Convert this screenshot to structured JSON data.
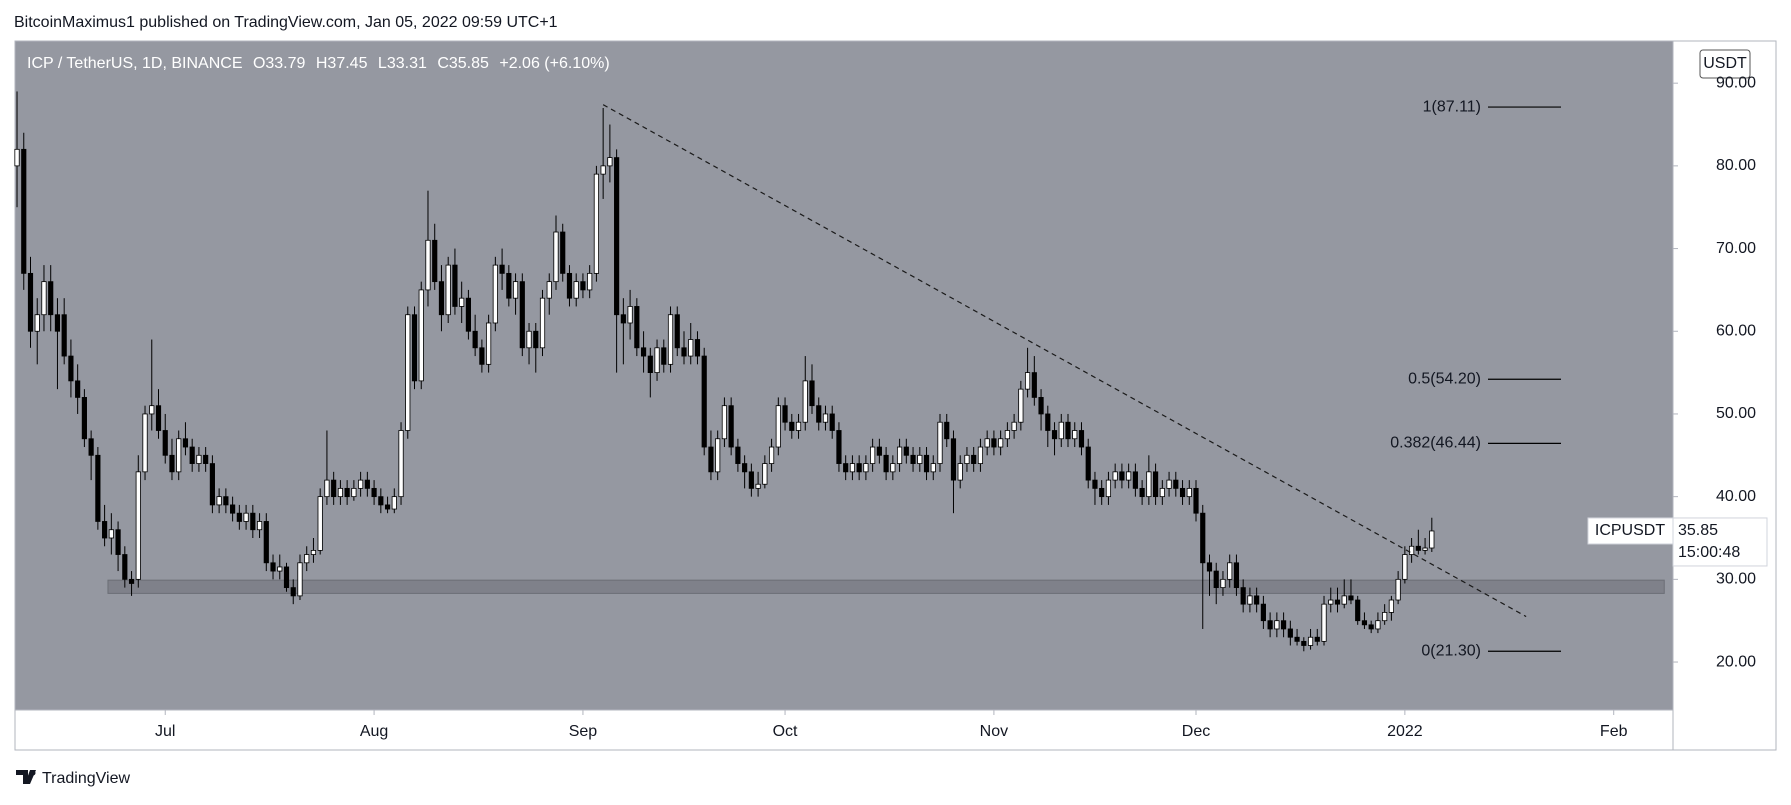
{
  "header": "BitcoinMaximus1 published on TradingView.com, Jan 05, 2022 09:59 UTC+1",
  "footer": "TradingView",
  "chart_data": {
    "type": "candlestick",
    "legend": {
      "symbol": "ICP / TetherUS, 1D, BINANCE",
      "open": "O33.79",
      "high": "H37.45",
      "low": "L33.31",
      "close": "C35.85",
      "change": "+2.06 (+6.10%)"
    },
    "currency": "USDT",
    "ylim": [
      14.2,
      95.1
    ],
    "yticks": [
      {
        "value": 20,
        "label": "20.00"
      },
      {
        "value": 30,
        "label": "30.00"
      },
      {
        "value": 40,
        "label": "40.00"
      },
      {
        "value": 50,
        "label": "50.00"
      },
      {
        "value": 60,
        "label": "60.00"
      },
      {
        "value": 70,
        "label": "70.00"
      },
      {
        "value": 80,
        "label": "80.00"
      },
      {
        "value": 90,
        "label": "90.00"
      }
    ],
    "xlim": [
      -0.3,
      245.8
    ],
    "xticks": [
      {
        "value": 22,
        "label": "Jul"
      },
      {
        "value": 53,
        "label": "Aug"
      },
      {
        "value": 84,
        "label": "Sep"
      },
      {
        "value": 114,
        "label": "Oct"
      },
      {
        "value": 145,
        "label": "Nov"
      },
      {
        "value": 175,
        "label": "Dec"
      },
      {
        "value": 206,
        "label": "2022"
      },
      {
        "value": 237,
        "label": "Feb"
      }
    ],
    "up_color": "#ffffff",
    "down_color": "#000000",
    "candles": [
      [
        80,
        89,
        75,
        82
      ],
      [
        82,
        84,
        65,
        67
      ],
      [
        67,
        69,
        58,
        60
      ],
      [
        60,
        64,
        56,
        62
      ],
      [
        62,
        68,
        60,
        66
      ],
      [
        66,
        68,
        60,
        62
      ],
      [
        62,
        64,
        53,
        60
      ],
      [
        62,
        64,
        56,
        57
      ],
      [
        57,
        59,
        52,
        54
      ],
      [
        54,
        56,
        50,
        52
      ],
      [
        52,
        53,
        46,
        47
      ],
      [
        47,
        48,
        42,
        45
      ],
      [
        45,
        46,
        36,
        37
      ],
      [
        37,
        39,
        34,
        35
      ],
      [
        35,
        38,
        33,
        36
      ],
      [
        36,
        37,
        31,
        33
      ],
      [
        33,
        34,
        29,
        30
      ],
      [
        30,
        31,
        28,
        29.5
      ],
      [
        30,
        45,
        29,
        43
      ],
      [
        43,
        51,
        42,
        50
      ],
      [
        50,
        59,
        48,
        51
      ],
      [
        51,
        53,
        47,
        48
      ],
      [
        48,
        50,
        44,
        45
      ],
      [
        45,
        47,
        42,
        43
      ],
      [
        43,
        48,
        42,
        47
      ],
      [
        47,
        49,
        45,
        46
      ],
      [
        46,
        47,
        43,
        44
      ],
      [
        44,
        46,
        43,
        45
      ],
      [
        45,
        46,
        43,
        44
      ],
      [
        44,
        45,
        38,
        39
      ],
      [
        39,
        41,
        38,
        40
      ],
      [
        40,
        41,
        38,
        39
      ],
      [
        39,
        40,
        37,
        38
      ],
      [
        38,
        39,
        36,
        37
      ],
      [
        37,
        39,
        36,
        38
      ],
      [
        38,
        39,
        35,
        36
      ],
      [
        36,
        38,
        35,
        37
      ],
      [
        37,
        38,
        31,
        32
      ],
      [
        32,
        33,
        30,
        31
      ],
      [
        31,
        33,
        30,
        31.5
      ],
      [
        31.5,
        32,
        28.5,
        29
      ],
      [
        29,
        30,
        27,
        28
      ],
      [
        28,
        33,
        27.5,
        32
      ],
      [
        32,
        34,
        31,
        33
      ],
      [
        33,
        35,
        32,
        33.5
      ],
      [
        33.5,
        41,
        33,
        40
      ],
      [
        40,
        48,
        39,
        42
      ],
      [
        42,
        43,
        39,
        40
      ],
      [
        40,
        42,
        39,
        41
      ],
      [
        41,
        42,
        39,
        40
      ],
      [
        40,
        42,
        39.5,
        41
      ],
      [
        41,
        43,
        40,
        42
      ],
      [
        42,
        43,
        40,
        41
      ],
      [
        41,
        42,
        39,
        40
      ],
      [
        40,
        41,
        38,
        39
      ],
      [
        39,
        40,
        38,
        38.5
      ],
      [
        38.5,
        41,
        38,
        40
      ],
      [
        40,
        49,
        39,
        48
      ],
      [
        48,
        63,
        47,
        62
      ],
      [
        62,
        63,
        53,
        54
      ],
      [
        54,
        66,
        53,
        65
      ],
      [
        65,
        77,
        63,
        71
      ],
      [
        71,
        73,
        65,
        66
      ],
      [
        66,
        68,
        60,
        62
      ],
      [
        62,
        69,
        61,
        68
      ],
      [
        68,
        70,
        62,
        63
      ],
      [
        63,
        66,
        61,
        64
      ],
      [
        64,
        65,
        59,
        60
      ],
      [
        60,
        62,
        57,
        58
      ],
      [
        58,
        59,
        55,
        56
      ],
      [
        56,
        62,
        55,
        61
      ],
      [
        61,
        69,
        60,
        68
      ],
      [
        68,
        70,
        65,
        67
      ],
      [
        67,
        68,
        63,
        64
      ],
      [
        64,
        67,
        62,
        66
      ],
      [
        66,
        67,
        57,
        58
      ],
      [
        58,
        61,
        56,
        60
      ],
      [
        60,
        61,
        55,
        58
      ],
      [
        58,
        65,
        57,
        64
      ],
      [
        64,
        67,
        62,
        66
      ],
      [
        66,
        74,
        65,
        72
      ],
      [
        72,
        73,
        66,
        67
      ],
      [
        67,
        68,
        63,
        64
      ],
      [
        64,
        67,
        63,
        66
      ],
      [
        66,
        67,
        64,
        65
      ],
      [
        65,
        68,
        64,
        67
      ],
      [
        67,
        80,
        66,
        79
      ],
      [
        79,
        87,
        76,
        80
      ],
      [
        80,
        85,
        78,
        81
      ],
      [
        81,
        82,
        55,
        62
      ],
      [
        62,
        64,
        56,
        61
      ],
      [
        61,
        65,
        59,
        63
      ],
      [
        63,
        64,
        57,
        58
      ],
      [
        58,
        60,
        55,
        57
      ],
      [
        57,
        58,
        52,
        55
      ],
      [
        55,
        59,
        54,
        58
      ],
      [
        58,
        59,
        55,
        56
      ],
      [
        56,
        63,
        55,
        62
      ],
      [
        62,
        63,
        57,
        58
      ],
      [
        58,
        60,
        56,
        57
      ],
      [
        57,
        61,
        56,
        59
      ],
      [
        59,
        60,
        56,
        57
      ],
      [
        57,
        58,
        45,
        46
      ],
      [
        46,
        48,
        42,
        43
      ],
      [
        43,
        48,
        42,
        47
      ],
      [
        47,
        52,
        46,
        51
      ],
      [
        51,
        52,
        45,
        46
      ],
      [
        46,
        47,
        43,
        44
      ],
      [
        44,
        45,
        41,
        43
      ],
      [
        43,
        44,
        40,
        41
      ],
      [
        41,
        43,
        40,
        41.5
      ],
      [
        41.5,
        45,
        41,
        44
      ],
      [
        44,
        47,
        43,
        46
      ],
      [
        46,
        52,
        45,
        51
      ],
      [
        51,
        52,
        48,
        49
      ],
      [
        49,
        50,
        47,
        48
      ],
      [
        48,
        50,
        47,
        49
      ],
      [
        49,
        57,
        48,
        54
      ],
      [
        54,
        56,
        50,
        51
      ],
      [
        51,
        52,
        48,
        49
      ],
      [
        49,
        51,
        48,
        50
      ],
      [
        50,
        51,
        47,
        48
      ],
      [
        48,
        49,
        43,
        44
      ],
      [
        44,
        45,
        42,
        43
      ],
      [
        43,
        45,
        42,
        44
      ],
      [
        44,
        45,
        42,
        43
      ],
      [
        43,
        45,
        42,
        44
      ],
      [
        44,
        47,
        43,
        46
      ],
      [
        46,
        47,
        44,
        45
      ],
      [
        45,
        46,
        42,
        43
      ],
      [
        43,
        45,
        42,
        44
      ],
      [
        44,
        47,
        43,
        46
      ],
      [
        46,
        47,
        44,
        45
      ],
      [
        45,
        46,
        43,
        44
      ],
      [
        44,
        46,
        43,
        45
      ],
      [
        45,
        46,
        42,
        43
      ],
      [
        43,
        45,
        42,
        44
      ],
      [
        44,
        50,
        43,
        49
      ],
      [
        49,
        50,
        46,
        47
      ],
      [
        47,
        48,
        38,
        42
      ],
      [
        42,
        45,
        41,
        44
      ],
      [
        44,
        46,
        43,
        45
      ],
      [
        45,
        46,
        43,
        44
      ],
      [
        44,
        47,
        43,
        46
      ],
      [
        46,
        48,
        45,
        47
      ],
      [
        47,
        48,
        45,
        46
      ],
      [
        46,
        48,
        45,
        47
      ],
      [
        47,
        49,
        46,
        48
      ],
      [
        48,
        50,
        47,
        49
      ],
      [
        49,
        54,
        48,
        53
      ],
      [
        53,
        58,
        52,
        55
      ],
      [
        55,
        57,
        51,
        52
      ],
      [
        52,
        53,
        48,
        50
      ],
      [
        50,
        51,
        46,
        48
      ],
      [
        48,
        49,
        45,
        47
      ],
      [
        47,
        50,
        46,
        49
      ],
      [
        49,
        50,
        46,
        47
      ],
      [
        47,
        49,
        46,
        48
      ],
      [
        48,
        49,
        45,
        46
      ],
      [
        46,
        47,
        41,
        42
      ],
      [
        42,
        43,
        39,
        41
      ],
      [
        41,
        42,
        39,
        40
      ],
      [
        40,
        43,
        39,
        42
      ],
      [
        42,
        44,
        41,
        43
      ],
      [
        43,
        44,
        41,
        42
      ],
      [
        42,
        44,
        41,
        43
      ],
      [
        43,
        44,
        40,
        41
      ],
      [
        41,
        42,
        39,
        40
      ],
      [
        40,
        45,
        39,
        43
      ],
      [
        43,
        44,
        39,
        40
      ],
      [
        40,
        42,
        39,
        41
      ],
      [
        41,
        43,
        40,
        42
      ],
      [
        42,
        43,
        40,
        41
      ],
      [
        41,
        42,
        39,
        40
      ],
      [
        40,
        42,
        39,
        41
      ],
      [
        41,
        42,
        37,
        38
      ],
      [
        38,
        39,
        24,
        32
      ],
      [
        32,
        33,
        28,
        31
      ],
      [
        31,
        32,
        27,
        29
      ],
      [
        29,
        31,
        28,
        30
      ],
      [
        30,
        33,
        29,
        32
      ],
      [
        32,
        33,
        28,
        29
      ],
      [
        29,
        30,
        26,
        27
      ],
      [
        27,
        29,
        26,
        28
      ],
      [
        28,
        29,
        26,
        27
      ],
      [
        27,
        28,
        24,
        25
      ],
      [
        25,
        26,
        23,
        24
      ],
      [
        24,
        26,
        23,
        25
      ],
      [
        25,
        26,
        23,
        24
      ],
      [
        24,
        25,
        22,
        23
      ],
      [
        23,
        24,
        22,
        22.5
      ],
      [
        22.5,
        23,
        21.3,
        22
      ],
      [
        22,
        24,
        21.5,
        23
      ],
      [
        23,
        24,
        22,
        22.5
      ],
      [
        22.5,
        28,
        22,
        27
      ],
      [
        27,
        29,
        26,
        27.5
      ],
      [
        27.5,
        29,
        26,
        27
      ],
      [
        27,
        30,
        26.5,
        28
      ],
      [
        28,
        30,
        27,
        27.5
      ],
      [
        27.5,
        28,
        24.5,
        25
      ],
      [
        25,
        26,
        24,
        24.5
      ],
      [
        24.5,
        25,
        23.5,
        24
      ],
      [
        24,
        26,
        23.5,
        25
      ],
      [
        25,
        27,
        24.5,
        26
      ],
      [
        26,
        28,
        25,
        27.5
      ],
      [
        27.5,
        31,
        27,
        30
      ],
      [
        30,
        34,
        29.5,
        33
      ],
      [
        33,
        35,
        32,
        34
      ],
      [
        34,
        36,
        33,
        33.5
      ],
      [
        33.5,
        35,
        33,
        33.79
      ],
      [
        33.79,
        37.45,
        33.31,
        35.85
      ]
    ],
    "fib_levels": [
      {
        "label": "1(87.11)",
        "value": 87.11
      },
      {
        "label": "0.5(54.20)",
        "value": 54.2
      },
      {
        "label": "0.382(46.44)",
        "value": 46.44
      },
      {
        "label": "0(21.30)",
        "value": 21.3
      }
    ],
    "support_zone": {
      "low": 28.3,
      "high": 29.9,
      "x": [
        13.5,
        244.5
      ]
    },
    "trendline": {
      "x": [
        87,
        224
      ],
      "y": [
        87.4,
        25.5
      ]
    },
    "price_label": {
      "symbol": "ICPUSDT",
      "value": 35.85,
      "countdown": "15:00:48"
    }
  }
}
